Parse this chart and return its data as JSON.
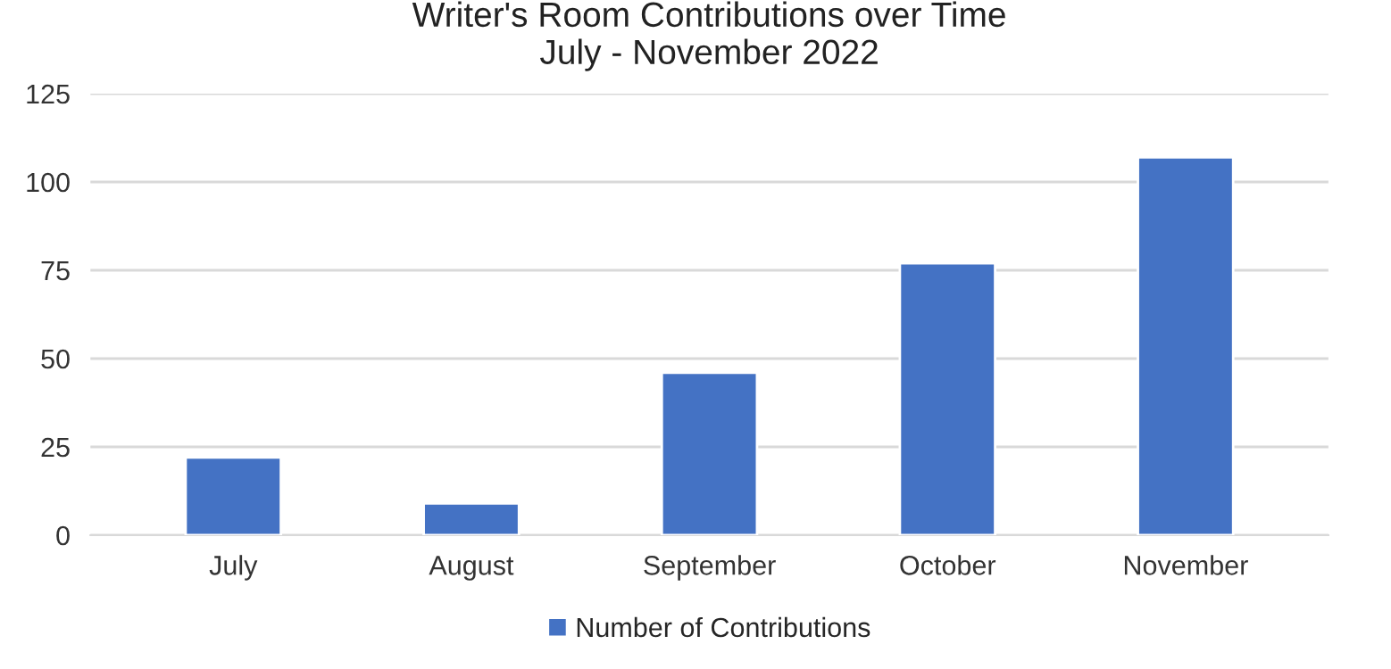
{
  "chart_data": {
    "type": "bar",
    "title": "Writer's Room Contributions over Time\nJuly - November 2022",
    "categories": [
      "July",
      "August",
      "September",
      "October",
      "November"
    ],
    "series": [
      {
        "name": "Number of Contributions",
        "color": "#4472c4",
        "values": [
          22,
          9,
          46,
          77,
          107
        ]
      }
    ],
    "ylim": [
      0,
      125
    ],
    "yticks": [
      0,
      25,
      50,
      75,
      100,
      125
    ],
    "grid": "y",
    "legend": "bottom"
  }
}
